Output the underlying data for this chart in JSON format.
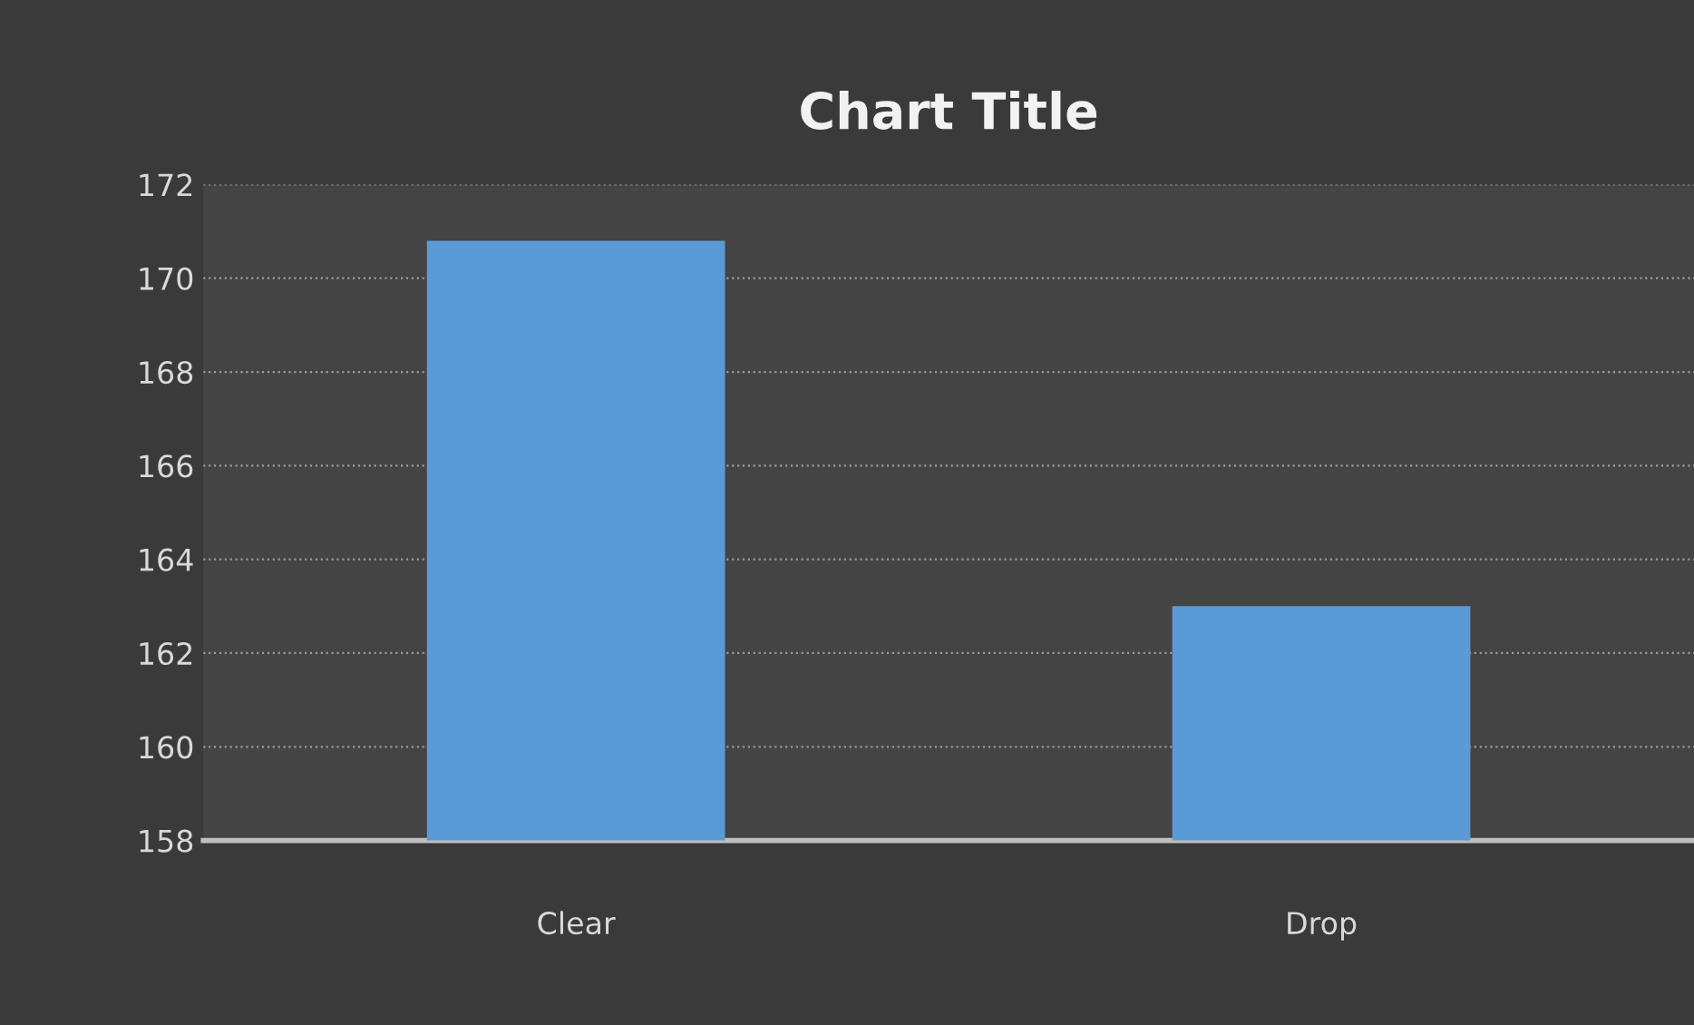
{
  "chart_data": {
    "type": "bar",
    "title": "Chart Title",
    "categories": [
      "Clear",
      "Drop"
    ],
    "values": [
      170.8,
      163.0
    ],
    "color": "#5b9bd5",
    "ylim": [
      158,
      172
    ],
    "yticks": [
      158,
      160,
      162,
      164,
      166,
      168,
      170,
      172
    ],
    "grid": "y"
  }
}
